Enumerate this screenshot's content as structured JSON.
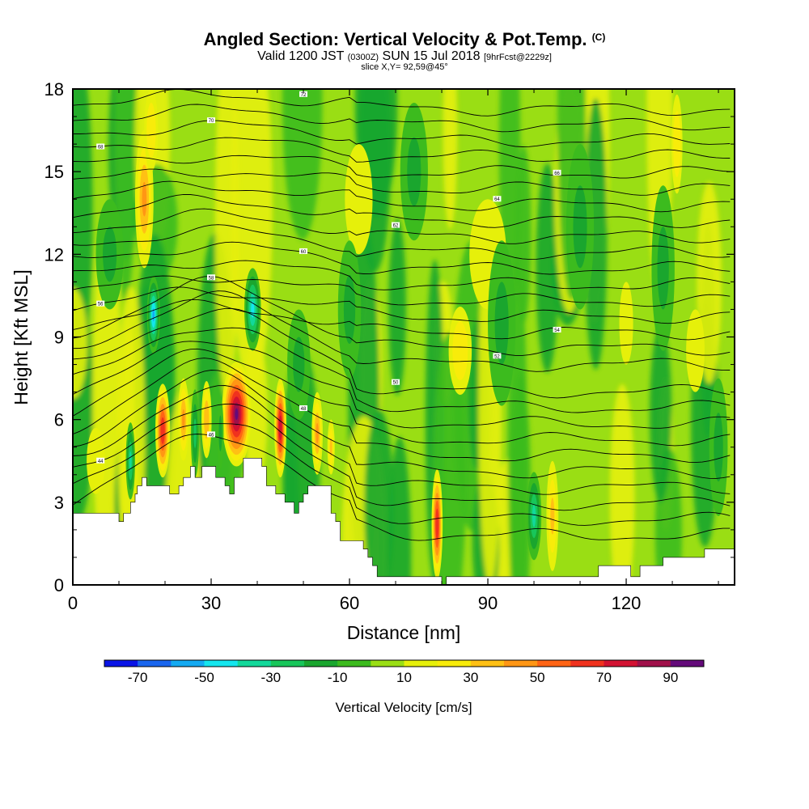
{
  "header": {
    "title": "Angled Section: Vertical Velocity & Pot.Temp.",
    "title_tag": "(C)",
    "valid_main": "Valid 1200 JST",
    "valid_utc": "(0300Z)",
    "valid_date": "SUN 15 Jul 2018",
    "forecast": "[9hrFcst@2229z]",
    "slice": "slice X,Y= 92,59@45°"
  },
  "chart_data": {
    "type": "heatmap",
    "title": "Angled Section: Vertical Velocity & Pot.Temp.",
    "xlabel": "Distance [nm]",
    "ylabel": "Height [Kft MSL]",
    "xlim": [
      0,
      143.5
    ],
    "ylim": [
      0,
      18
    ],
    "x_ticks": [
      "0",
      "30",
      "60",
      "90",
      "120"
    ],
    "y_ticks": [
      "0",
      "3",
      "6",
      "9",
      "12",
      "15",
      "18"
    ],
    "colorbar": {
      "label": "Vertical Velocity [cm/s]",
      "tick_labels": [
        "-70",
        "-50",
        "-30",
        "-10",
        "10",
        "30",
        "50",
        "70",
        "90"
      ],
      "bins": [
        -80,
        -70,
        -60,
        -50,
        -40,
        -30,
        -20,
        -10,
        0,
        10,
        20,
        30,
        40,
        50,
        60,
        70,
        80,
        90,
        100
      ],
      "colors": [
        "#0a14e6",
        "#1a66ee",
        "#14aaf2",
        "#14e6ee",
        "#12d89a",
        "#18c65a",
        "#1aa62e",
        "#3cbb1e",
        "#9ade14",
        "#e6f00a",
        "#f8ec0a",
        "#ffc014",
        "#ff9614",
        "#ff6414",
        "#f0321e",
        "#d21232",
        "#a0104a",
        "#640a7a"
      ]
    },
    "terrain_kft": [
      [
        0,
        2.6
      ],
      [
        10,
        2.6
      ],
      [
        10,
        2.3
      ],
      [
        11,
        2.3
      ],
      [
        11,
        2.6
      ],
      [
        12.5,
        2.6
      ],
      [
        12.5,
        3.0
      ],
      [
        13.5,
        3.0
      ],
      [
        13.5,
        3.3
      ],
      [
        14,
        3.3
      ],
      [
        14,
        3.6
      ],
      [
        15,
        3.6
      ],
      [
        15,
        3.9
      ],
      [
        16,
        3.9
      ],
      [
        16,
        3.6
      ],
      [
        21,
        3.6
      ],
      [
        21,
        3.3
      ],
      [
        23,
        3.3
      ],
      [
        23,
        3.6
      ],
      [
        24,
        3.6
      ],
      [
        24,
        3.9
      ],
      [
        25.5,
        3.9
      ],
      [
        25.5,
        4.3
      ],
      [
        26.5,
        4.3
      ],
      [
        26.5,
        3.9
      ],
      [
        28,
        3.9
      ],
      [
        28,
        4.3
      ],
      [
        31,
        4.3
      ],
      [
        31,
        3.9
      ],
      [
        33,
        3.9
      ],
      [
        33,
        3.6
      ],
      [
        34,
        3.6
      ],
      [
        34,
        3.3
      ],
      [
        35,
        3.3
      ],
      [
        35,
        3.9
      ],
      [
        37,
        3.9
      ],
      [
        37,
        4.6
      ],
      [
        41,
        4.6
      ],
      [
        41,
        4.3
      ],
      [
        42,
        4.3
      ],
      [
        42,
        3.6
      ],
      [
        44,
        3.6
      ],
      [
        44,
        3.3
      ],
      [
        46,
        3.3
      ],
      [
        46,
        3.0
      ],
      [
        48,
        3.0
      ],
      [
        48,
        2.6
      ],
      [
        49,
        2.6
      ],
      [
        49,
        3.0
      ],
      [
        50,
        3.0
      ],
      [
        50,
        3.3
      ],
      [
        51,
        3.3
      ],
      [
        51,
        3.6
      ],
      [
        56,
        3.6
      ],
      [
        56,
        2.6
      ],
      [
        57,
        2.6
      ],
      [
        57,
        2.3
      ],
      [
        58,
        2.3
      ],
      [
        58,
        1.6
      ],
      [
        63,
        1.6
      ],
      [
        63,
        1.3
      ],
      [
        64,
        1.3
      ],
      [
        64,
        1.0
      ],
      [
        65,
        1.0
      ],
      [
        65,
        0.7
      ],
      [
        66,
        0.7
      ],
      [
        66,
        0.3
      ],
      [
        80,
        0.3
      ],
      [
        80,
        0.0
      ],
      [
        81,
        0.0
      ],
      [
        81,
        0.3
      ],
      [
        114,
        0.3
      ],
      [
        114,
        0.7
      ],
      [
        121,
        0.7
      ],
      [
        121,
        0.3
      ],
      [
        123,
        0.3
      ],
      [
        123,
        0.7
      ],
      [
        128,
        0.7
      ],
      [
        128,
        1.0
      ],
      [
        137,
        1.0
      ],
      [
        137,
        1.3
      ],
      [
        143.5,
        1.3
      ]
    ],
    "updrafts": [
      {
        "x": 19.5,
        "y": 5.6,
        "w": 1.6,
        "h": 1.7,
        "v": 65
      },
      {
        "x": 24.0,
        "y": 6.0,
        "w": 1.2,
        "h": 1.5,
        "v": 40
      },
      {
        "x": 29.0,
        "y": 6.0,
        "w": 1.1,
        "h": 1.4,
        "v": 35
      },
      {
        "x": 35.5,
        "y": 6.2,
        "w": 3.2,
        "h": 1.9,
        "v": 90
      },
      {
        "x": 45.0,
        "y": 5.7,
        "w": 1.3,
        "h": 1.8,
        "v": 75
      },
      {
        "x": 53.0,
        "y": 5.5,
        "w": 1.2,
        "h": 1.5,
        "v": 40
      },
      {
        "x": 56.0,
        "y": 5.0,
        "w": 0.8,
        "h": 1.0,
        "v": 30
      },
      {
        "x": 79.0,
        "y": 2.2,
        "w": 1.2,
        "h": 2.0,
        "v": 65
      },
      {
        "x": 104.0,
        "y": 2.5,
        "w": 1.3,
        "h": 2.0,
        "v": 30
      },
      {
        "x": 15.5,
        "y": 14.0,
        "w": 2.0,
        "h": 2.5,
        "v": 40
      },
      {
        "x": 17.0,
        "y": 16.5,
        "w": 1.5,
        "h": 1.5,
        "v": 25
      },
      {
        "x": 84.0,
        "y": 8.5,
        "w": 2.5,
        "h": 1.6,
        "v": 22
      },
      {
        "x": 131.0,
        "y": 16.0,
        "w": 1.2,
        "h": 1.8,
        "v": 22
      },
      {
        "x": 120.0,
        "y": 9.5,
        "w": 1.5,
        "h": 1.5,
        "v": 15
      },
      {
        "x": 62.0,
        "y": 14.0,
        "w": 3.0,
        "h": 2.0,
        "v": 14
      },
      {
        "x": 90.0,
        "y": 12.0,
        "w": 4.0,
        "h": 2.0,
        "v": 14
      },
      {
        "x": 5.0,
        "y": 4.5,
        "w": 2.0,
        "h": 1.2,
        "v": 18
      },
      {
        "x": 135.0,
        "y": 8.5,
        "w": 2.0,
        "h": 1.5,
        "v": 14
      }
    ],
    "downdrafts": [
      {
        "x": 17.5,
        "y": 9.8,
        "w": 1.4,
        "h": 1.4,
        "v": -55
      },
      {
        "x": 39.0,
        "y": 10.0,
        "w": 1.8,
        "h": 1.5,
        "v": -50
      },
      {
        "x": 12.5,
        "y": 4.5,
        "w": 1.0,
        "h": 1.4,
        "v": -35
      },
      {
        "x": 26.5,
        "y": 5.5,
        "w": 0.9,
        "h": 1.6,
        "v": -30
      },
      {
        "x": 32.0,
        "y": 5.5,
        "w": 0.7,
        "h": 1.3,
        "v": -20
      },
      {
        "x": 100.0,
        "y": 2.5,
        "w": 1.6,
        "h": 1.6,
        "v": -35
      },
      {
        "x": 93.0,
        "y": 9.5,
        "w": 3.0,
        "h": 3.0,
        "v": -12
      },
      {
        "x": 110.0,
        "y": 13.0,
        "w": 3.0,
        "h": 3.0,
        "v": -12
      },
      {
        "x": 128.0,
        "y": 11.5,
        "w": 2.5,
        "h": 3.0,
        "v": -12
      },
      {
        "x": 60.0,
        "y": 10.0,
        "w": 2.5,
        "h": 2.5,
        "v": -12
      },
      {
        "x": 74.0,
        "y": 15.0,
        "w": 3.0,
        "h": 2.5,
        "v": -12
      },
      {
        "x": 140.0,
        "y": 5.0,
        "w": 2.0,
        "h": 2.5,
        "v": -14
      },
      {
        "x": 49.0,
        "y": 8.0,
        "w": 2.5,
        "h": 2.0,
        "v": -12
      },
      {
        "x": 8.0,
        "y": 12.0,
        "w": 3.0,
        "h": 2.0,
        "v": -12
      }
    ],
    "isentrope_labels": [
      "44",
      "46",
      "48",
      "50",
      "52",
      "54",
      "56",
      "58",
      "60",
      "62",
      "64",
      "66",
      "68",
      "70",
      "72"
    ]
  }
}
